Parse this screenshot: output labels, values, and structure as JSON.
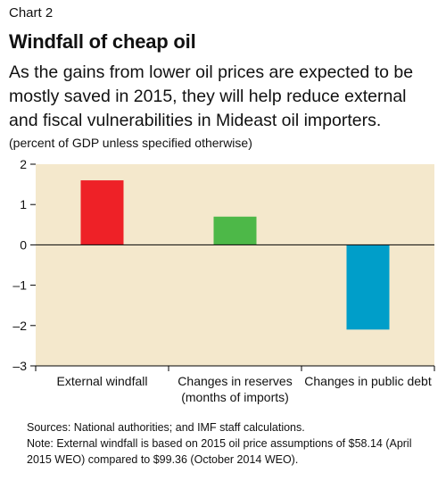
{
  "header": {
    "chart_label": "Chart 2",
    "title": "Windfall of cheap oil",
    "subtitle": "As the gains from lower oil prices are expected to be mostly saved in 2015, they will help reduce external and fiscal vulnerabilities in Mideast oil importers.",
    "units": "(percent of GDP unless specified otherwise)"
  },
  "footnotes": {
    "sources": "Sources: National authorities; and IMF staff calculations.",
    "note": "Note: External windfall is based on 2015 oil price assumptions of $58.14 (April 2015 WEO) compared to $99.36 (October 2014 WEO)."
  },
  "chart_data": {
    "type": "bar",
    "categories": [
      [
        "External windfall"
      ],
      [
        "Changes in reserves",
        "(months of imports)"
      ],
      [
        "Changes in public debt"
      ]
    ],
    "values": [
      1.6,
      0.7,
      -2.1
    ],
    "bar_colors": [
      "#ee2127",
      "#4db848",
      "#009ec9"
    ],
    "ylim": [
      -3,
      2
    ],
    "yticks": [
      2,
      1,
      0,
      -1,
      -2,
      -3
    ],
    "ytick_labels": [
      "2",
      "1",
      "0",
      "–1",
      "–2",
      "–3"
    ],
    "plot_background": "#f4e8cc",
    "grid": false
  }
}
